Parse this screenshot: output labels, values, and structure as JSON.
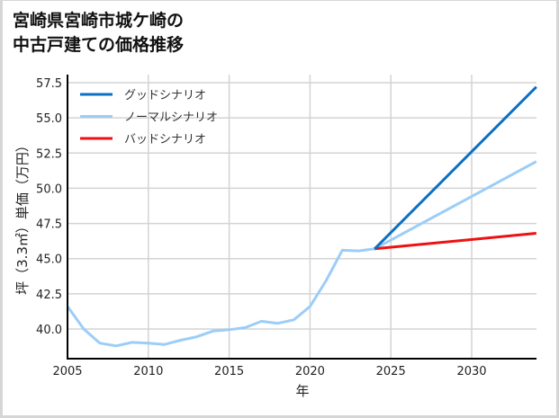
{
  "title": {
    "line1": "宮崎県宮崎市城ケ崎の",
    "line2": "中古戸建ての価格推移"
  },
  "colors": {
    "good": "#0a70c6",
    "normal": "#9ccdf8",
    "bad": "#ee1111",
    "grid": "#d3d3d3",
    "axis": "#000000"
  },
  "chart_data": {
    "type": "line",
    "title": "宮崎県宮崎市城ケ崎の中古戸建ての価格推移",
    "xlabel": "年",
    "ylabel": "坪（3.3㎡）単価（万円）",
    "xlim": [
      2005,
      2034
    ],
    "ylim": [
      37.9,
      58.0
    ],
    "x_ticks": [
      2005,
      2010,
      2015,
      2020,
      2025,
      2030
    ],
    "y_ticks": [
      40.0,
      42.5,
      45.0,
      47.5,
      50.0,
      52.5,
      55.0,
      57.5
    ],
    "y_tick_labels": [
      "40.0",
      "42.5",
      "45.0",
      "47.5",
      "50.0",
      "52.5",
      "55.0",
      "57.5"
    ],
    "grid": true,
    "legend_position": "upper left",
    "series": [
      {
        "name": "グッドシナリオ",
        "color": "#0a70c6",
        "x": [
          2024,
          2034
        ],
        "values": [
          45.7,
          57.2
        ]
      },
      {
        "name": "ノーマルシナリオ",
        "color": "#9ccdf8",
        "x": [
          2005,
          2006,
          2007,
          2008,
          2009,
          2010,
          2011,
          2012,
          2013,
          2014,
          2015,
          2016,
          2017,
          2018,
          2019,
          2020,
          2021,
          2022,
          2023,
          2024,
          2034
        ],
        "values": [
          41.6,
          40.0,
          39.0,
          38.8,
          39.05,
          39.0,
          38.9,
          39.2,
          39.45,
          39.85,
          39.95,
          40.1,
          40.55,
          40.4,
          40.65,
          41.6,
          43.45,
          45.6,
          45.55,
          45.7,
          51.9
        ]
      },
      {
        "name": "バッドシナリオ",
        "color": "#ee1111",
        "x": [
          2024,
          2034
        ],
        "values": [
          45.7,
          46.8
        ]
      }
    ]
  }
}
